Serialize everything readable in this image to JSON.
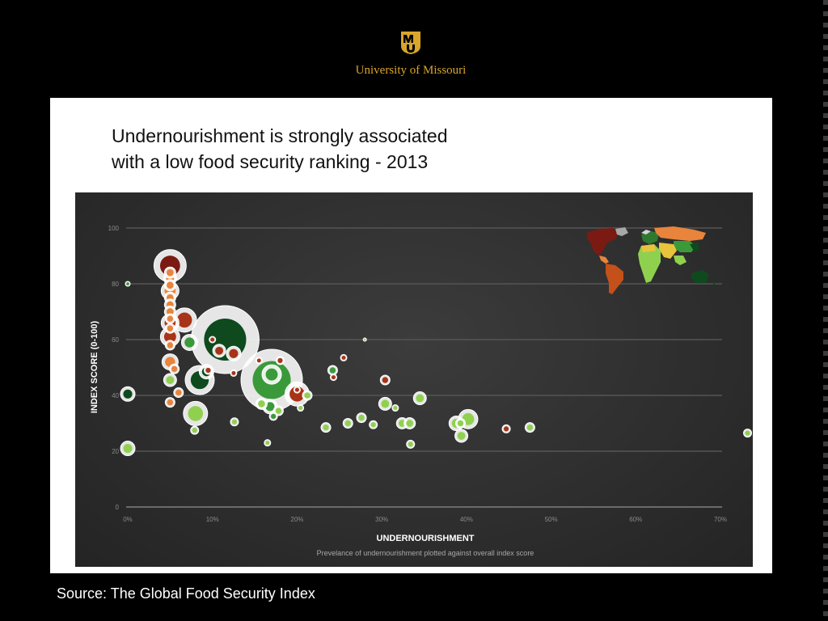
{
  "header": {
    "logo_text": "MU",
    "university_name": "University of Missouri"
  },
  "slide": {
    "title_line1": "Undernourishment is strongly associated",
    "title_line2": "with a low food security ranking - 2013"
  },
  "source": "Source: The Global Food Security Index",
  "colors": {
    "background": "#000000",
    "gold": "#d9a52a",
    "chart_bg": "#333333",
    "dark_red": "#7a1a12",
    "red": "#a83418",
    "orange": "#e8843c",
    "light_green": "#8fd14f",
    "green": "#3a9a3a",
    "dark_green": "#0e4a1e",
    "halo": "#ffffff"
  },
  "chart_data": {
    "type": "scatter",
    "xlabel": "UNDERNOURISHMENT",
    "ylabel": "INDEX SCORE (0-100)",
    "subtitle": "Prevelance of undernourishment plotted against overall index score",
    "xlim": [
      0,
      70
    ],
    "ylim": [
      0,
      100
    ],
    "x_ticks": [
      "0%",
      "10%",
      "20%",
      "30%",
      "40%",
      "50%",
      "60%",
      "70%"
    ],
    "y_ticks": [
      "0",
      "20",
      "40",
      "60",
      "80",
      "100"
    ],
    "grid": true,
    "inset": "world map colored by index score, top-right",
    "points": [
      {
        "x": 5.0,
        "y": 86.5,
        "c": "dark_red",
        "r": 20
      },
      {
        "x": 5.0,
        "y": 84.0,
        "c": "orange",
        "r": 7
      },
      {
        "x": 5.0,
        "y": 82.0,
        "c": "orange",
        "r": 8
      },
      {
        "x": 5.0,
        "y": 79.5,
        "c": "orange",
        "r": 7
      },
      {
        "x": 5.0,
        "y": 77.5,
        "c": "orange",
        "r": 11
      },
      {
        "x": 5.0,
        "y": 75.0,
        "c": "orange",
        "r": 7
      },
      {
        "x": 5.0,
        "y": 72.5,
        "c": "orange",
        "r": 7
      },
      {
        "x": 5.0,
        "y": 70.0,
        "c": "orange",
        "r": 7
      },
      {
        "x": 5.0,
        "y": 67.5,
        "c": "orange",
        "r": 6
      },
      {
        "x": 5.0,
        "y": 66.0,
        "c": "red",
        "r": 11
      },
      {
        "x": 5.0,
        "y": 64.0,
        "c": "orange",
        "r": 6
      },
      {
        "x": 5.0,
        "y": 61.0,
        "c": "red",
        "r": 12
      },
      {
        "x": 5.0,
        "y": 58.0,
        "c": "orange",
        "r": 6
      },
      {
        "x": 5.0,
        "y": 52.0,
        "c": "orange",
        "r": 10
      },
      {
        "x": 5.5,
        "y": 49.5,
        "c": "orange",
        "r": 6
      },
      {
        "x": 5.0,
        "y": 45.5,
        "c": "light_green",
        "r": 8
      },
      {
        "x": 5.0,
        "y": 37.5,
        "c": "orange",
        "r": 6
      },
      {
        "x": 6.0,
        "y": 41.0,
        "c": "orange",
        "r": 6
      },
      {
        "x": 6.7,
        "y": 67.0,
        "c": "red",
        "r": 15
      },
      {
        "x": 7.3,
        "y": 59.0,
        "c": "green",
        "r": 10
      },
      {
        "x": 8.5,
        "y": 45.5,
        "c": "dark_green",
        "r": 18
      },
      {
        "x": 9.3,
        "y": 48.5,
        "c": "dark_green",
        "r": 9
      },
      {
        "x": 9.5,
        "y": 49.0,
        "c": "red",
        "r": 5
      },
      {
        "x": 8.0,
        "y": 33.5,
        "c": "light_green",
        "r": 15
      },
      {
        "x": 7.9,
        "y": 27.5,
        "c": "light_green",
        "r": 5
      },
      {
        "x": 0.0,
        "y": 80.0,
        "c": "green",
        "r": 3
      },
      {
        "x": 0.0,
        "y": 40.5,
        "c": "dark_green",
        "r": 9
      },
      {
        "x": 0.0,
        "y": 21.0,
        "c": "light_green",
        "r": 9
      },
      {
        "x": 11.5,
        "y": 60.0,
        "c": "dark_green",
        "r": 42
      },
      {
        "x": 10.0,
        "y": 60.0,
        "c": "red",
        "r": 4
      },
      {
        "x": 10.8,
        "y": 56.0,
        "c": "red",
        "r": 8
      },
      {
        "x": 12.5,
        "y": 55.0,
        "c": "red",
        "r": 9
      },
      {
        "x": 12.5,
        "y": 48.0,
        "c": "red",
        "r": 4
      },
      {
        "x": 12.6,
        "y": 30.5,
        "c": "light_green",
        "r": 5
      },
      {
        "x": 17.0,
        "y": 45.5,
        "c": "green",
        "r": 38
      },
      {
        "x": 17.0,
        "y": 47.5,
        "c": "green",
        "r": 12
      },
      {
        "x": 15.5,
        "y": 52.5,
        "c": "red",
        "r": 4
      },
      {
        "x": 18.0,
        "y": 52.5,
        "c": "red",
        "r": 5
      },
      {
        "x": 20.0,
        "y": 40.5,
        "c": "red",
        "r": 15
      },
      {
        "x": 20.0,
        "y": 42.0,
        "c": "red",
        "r": 4
      },
      {
        "x": 21.2,
        "y": 40.0,
        "c": "light_green",
        "r": 6
      },
      {
        "x": 20.4,
        "y": 35.5,
        "c": "light_green",
        "r": 4
      },
      {
        "x": 15.8,
        "y": 37.0,
        "c": "light_green",
        "r": 7
      },
      {
        "x": 16.8,
        "y": 36.0,
        "c": "green",
        "r": 9
      },
      {
        "x": 17.2,
        "y": 32.5,
        "c": "green",
        "r": 5
      },
      {
        "x": 17.8,
        "y": 34.5,
        "c": "light_green",
        "r": 6
      },
      {
        "x": 16.5,
        "y": 23.0,
        "c": "light_green",
        "r": 4
      },
      {
        "x": 23.4,
        "y": 28.5,
        "c": "light_green",
        "r": 6
      },
      {
        "x": 24.2,
        "y": 49.0,
        "c": "green",
        "r": 6
      },
      {
        "x": 24.3,
        "y": 46.5,
        "c": "red",
        "r": 4
      },
      {
        "x": 25.5,
        "y": 53.5,
        "c": "red",
        "r": 4
      },
      {
        "x": 26.0,
        "y": 30.0,
        "c": "light_green",
        "r": 6
      },
      {
        "x": 27.6,
        "y": 32.0,
        "c": "light_green",
        "r": 6
      },
      {
        "x": 28.0,
        "y": 60.0,
        "c": "light_green",
        "r": 2
      },
      {
        "x": 29.0,
        "y": 29.5,
        "c": "light_green",
        "r": 5
      },
      {
        "x": 30.4,
        "y": 45.5,
        "c": "red",
        "r": 6
      },
      {
        "x": 30.4,
        "y": 37.0,
        "c": "light_green",
        "r": 8
      },
      {
        "x": 31.6,
        "y": 35.5,
        "c": "light_green",
        "r": 4
      },
      {
        "x": 32.4,
        "y": 30.0,
        "c": "light_green",
        "r": 7
      },
      {
        "x": 33.3,
        "y": 30.0,
        "c": "light_green",
        "r": 7
      },
      {
        "x": 33.4,
        "y": 22.5,
        "c": "light_green",
        "r": 5
      },
      {
        "x": 34.5,
        "y": 39.0,
        "c": "light_green",
        "r": 8
      },
      {
        "x": 38.8,
        "y": 30.0,
        "c": "light_green",
        "r": 9
      },
      {
        "x": 39.3,
        "y": 30.0,
        "c": "light_green",
        "r": 6
      },
      {
        "x": 39.4,
        "y": 25.5,
        "c": "light_green",
        "r": 8
      },
      {
        "x": 40.2,
        "y": 31.5,
        "c": "light_green",
        "r": 12
      },
      {
        "x": 44.7,
        "y": 28.0,
        "c": "red",
        "r": 5
      },
      {
        "x": 47.5,
        "y": 28.5,
        "c": "light_green",
        "r": 6
      },
      {
        "x": 73.2,
        "y": 26.5,
        "c": "light_green",
        "r": 5
      }
    ]
  }
}
